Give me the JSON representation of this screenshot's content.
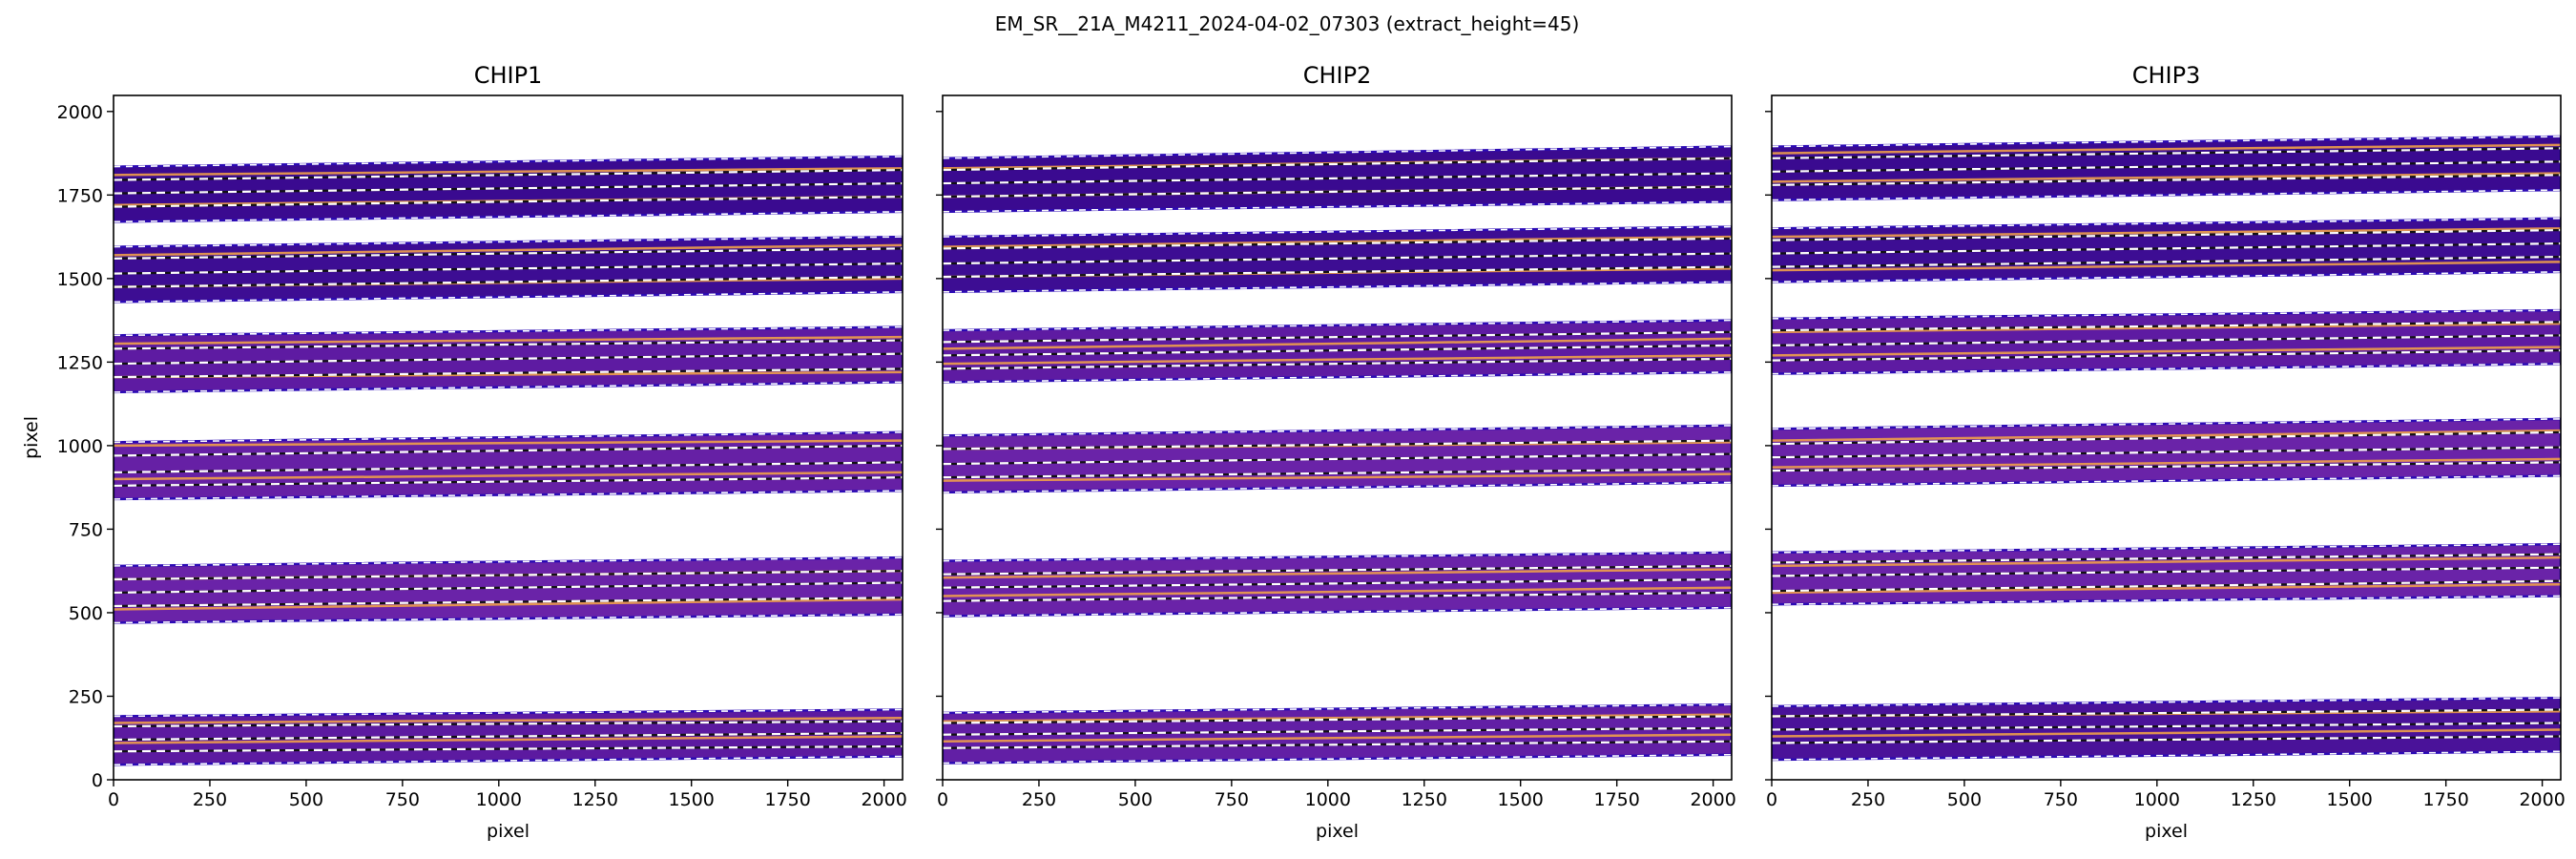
{
  "figure": {
    "suptitle": "EM_SR__21A_M4211_2024-04-02_07303  (extract_height=45)"
  },
  "chart_data": [
    {
      "type": "heatmap",
      "title": "CHIP1",
      "xlabel": "pixel",
      "ylabel": "pixel",
      "xlim": [
        0,
        2048
      ],
      "ylim": [
        0,
        2048
      ],
      "x_ticks": [
        "0",
        "250",
        "500",
        "750",
        "1000",
        "1250",
        "1500",
        "1750",
        "2000"
      ],
      "y_ticks": [
        "0",
        "250",
        "500",
        "750",
        "1000",
        "1250",
        "1500",
        "1750",
        "2000"
      ],
      "orders": [
        {
          "lower": [
            45,
            70
          ],
          "upper": [
            190,
            210
          ],
          "trace": [
            [
              85,
              100
            ],
            [
              120,
              140
            ],
            [
              160,
              175
            ]
          ],
          "fill": "#5c1aa0",
          "lines": [
            [
              110,
              130
            ],
            [
              170,
              185
            ]
          ]
        },
        {
          "lower": [
            470,
            495
          ],
          "upper": [
            640,
            665
          ],
          "trace": [
            [
              520,
              545
            ],
            [
              560,
              590
            ],
            [
              600,
              625
            ]
          ],
          "fill": "#6a23a8",
          "lines": [
            [
              510,
              540
            ],
            [
              600,
              625
            ]
          ]
        },
        {
          "lower": [
            840,
            865
          ],
          "upper": [
            1010,
            1040
          ],
          "trace": [
            [
              880,
              905
            ],
            [
              920,
              950
            ],
            [
              970,
              1000
            ]
          ],
          "fill": "#6620a5",
          "lines": [
            [
              900,
              920
            ],
            [
              1000,
              1015
            ]
          ]
        },
        {
          "lower": [
            1160,
            1190
          ],
          "upper": [
            1330,
            1355
          ],
          "trace": [
            [
              1205,
              1230
            ],
            [
              1245,
              1275
            ],
            [
              1290,
              1315
            ]
          ],
          "fill": "#5e1ba2",
          "lines": [
            [
              1205,
              1220
            ],
            [
              1305,
              1325
            ]
          ]
        },
        {
          "lower": [
            1430,
            1460
          ],
          "upper": [
            1595,
            1625
          ],
          "trace": [
            [
              1475,
              1505
            ],
            [
              1515,
              1545
            ],
            [
              1560,
              1590
            ]
          ],
          "fill": "#3d0d93",
          "lines": [
            [
              1475,
              1500
            ],
            [
              1570,
              1600
            ]
          ]
        },
        {
          "lower": [
            1670,
            1700
          ],
          "upper": [
            1835,
            1865
          ],
          "trace": [
            [
              1715,
              1745
            ],
            [
              1755,
              1785
            ],
            [
              1795,
              1825
            ]
          ],
          "fill": "#3a0a90",
          "lines": [
            [
              1720,
              1745
            ],
            [
              1810,
              1830
            ]
          ]
        }
      ]
    },
    {
      "type": "heatmap",
      "title": "CHIP2",
      "xlabel": "pixel",
      "ylabel": "",
      "xlim": [
        0,
        2048
      ],
      "ylim": [
        0,
        2048
      ],
      "x_ticks": [
        "0",
        "250",
        "500",
        "750",
        "1000",
        "1250",
        "1500",
        "1750",
        "2000"
      ],
      "y_ticks": [],
      "orders": [
        {
          "lower": [
            50,
            75
          ],
          "upper": [
            200,
            225
          ],
          "trace": [
            [
              95,
              115
            ],
            [
              135,
              155
            ],
            [
              170,
              190
            ]
          ],
          "fill": "#621fa5",
          "lines": [
            [
              115,
              135
            ],
            [
              175,
              195
            ]
          ]
        },
        {
          "lower": [
            490,
            515
          ],
          "upper": [
            655,
            680
          ],
          "trace": [
            [
              535,
              560
            ],
            [
              575,
              600
            ],
            [
              615,
              640
            ]
          ],
          "fill": "#6a23a8",
          "lines": [
            [
              550,
              575
            ],
            [
              605,
              630
            ]
          ]
        },
        {
          "lower": [
            860,
            890
          ],
          "upper": [
            1030,
            1060
          ],
          "trace": [
            [
              905,
              930
            ],
            [
              945,
              975
            ],
            [
              990,
              1015
            ]
          ],
          "fill": "#6a23a8",
          "lines": [
            [
              895,
              915
            ],
            [
              990,
              1010
            ]
          ]
        },
        {
          "lower": [
            1190,
            1220
          ],
          "upper": [
            1345,
            1375
          ],
          "trace": [
            [
              1230,
              1260
            ],
            [
              1270,
              1300
            ],
            [
              1310,
              1340
            ]
          ],
          "fill": "#5e1ba2",
          "lines": [
            [
              1245,
              1270
            ],
            [
              1290,
              1320
            ]
          ]
        },
        {
          "lower": [
            1460,
            1490
          ],
          "upper": [
            1625,
            1655
          ],
          "trace": [
            [
              1505,
              1535
            ],
            [
              1545,
              1575
            ],
            [
              1590,
              1620
            ]
          ],
          "fill": "#3d0d93",
          "lines": [
            [
              1505,
              1530
            ],
            [
              1595,
              1625
            ]
          ]
        },
        {
          "lower": [
            1700,
            1730
          ],
          "upper": [
            1860,
            1895
          ],
          "trace": [
            [
              1745,
              1775
            ],
            [
              1785,
              1815
            ],
            [
              1825,
              1860
            ]
          ],
          "fill": "#3a0a90",
          "lines": [
            [
              1745,
              1775
            ],
            [
              1830,
              1860
            ]
          ]
        }
      ]
    },
    {
      "type": "heatmap",
      "title": "CHIP3",
      "xlabel": "pixel",
      "ylabel": "",
      "xlim": [
        0,
        2048
      ],
      "ylim": [
        0,
        2048
      ],
      "x_ticks": [
        "0",
        "250",
        "500",
        "750",
        "1000",
        "1250",
        "1500",
        "1750",
        "2000"
      ],
      "y_ticks": [],
      "orders": [
        {
          "lower": [
            60,
            85
          ],
          "upper": [
            220,
            245
          ],
          "trace": [
            [
              110,
              130
            ],
            [
              150,
              170
            ],
            [
              190,
              210
            ]
          ],
          "fill": "#4a1299",
          "lines": [
            [
              130,
              150
            ],
            [
              190,
              205
            ]
          ]
        },
        {
          "lower": [
            525,
            550
          ],
          "upper": [
            680,
            705
          ],
          "trace": [
            [
              565,
              595
            ],
            [
              610,
              635
            ],
            [
              650,
              675
            ]
          ],
          "fill": "#6a23a8",
          "lines": [
            [
              560,
              585
            ],
            [
              640,
              665
            ]
          ]
        },
        {
          "lower": [
            880,
            910
          ],
          "upper": [
            1050,
            1080
          ],
          "trace": [
            [
              925,
              950
            ],
            [
              965,
              995
            ],
            [
              1005,
              1040
            ]
          ],
          "fill": "#6a23a8",
          "lines": [
            [
              935,
              960
            ],
            [
              1015,
              1045
            ]
          ]
        },
        {
          "lower": [
            1215,
            1245
          ],
          "upper": [
            1380,
            1405
          ],
          "trace": [
            [
              1255,
              1285
            ],
            [
              1300,
              1330
            ],
            [
              1345,
              1370
            ]
          ],
          "fill": "#5e1ba2",
          "lines": [
            [
              1270,
              1295
            ],
            [
              1340,
              1365
            ]
          ]
        },
        {
          "lower": [
            1490,
            1520
          ],
          "upper": [
            1650,
            1680
          ],
          "trace": [
            [
              1535,
              1565
            ],
            [
              1575,
              1605
            ],
            [
              1615,
              1645
            ]
          ],
          "fill": "#3d0d93",
          "lines": [
            [
              1525,
              1550
            ],
            [
              1625,
              1650
            ]
          ]
        },
        {
          "lower": [
            1735,
            1765
          ],
          "upper": [
            1895,
            1925
          ],
          "trace": [
            [
              1780,
              1810
            ],
            [
              1820,
              1850
            ],
            [
              1860,
              1890
            ]
          ],
          "fill": "#3a0a90",
          "lines": [
            [
              1790,
              1815
            ],
            [
              1875,
              1900
            ]
          ]
        }
      ]
    }
  ]
}
